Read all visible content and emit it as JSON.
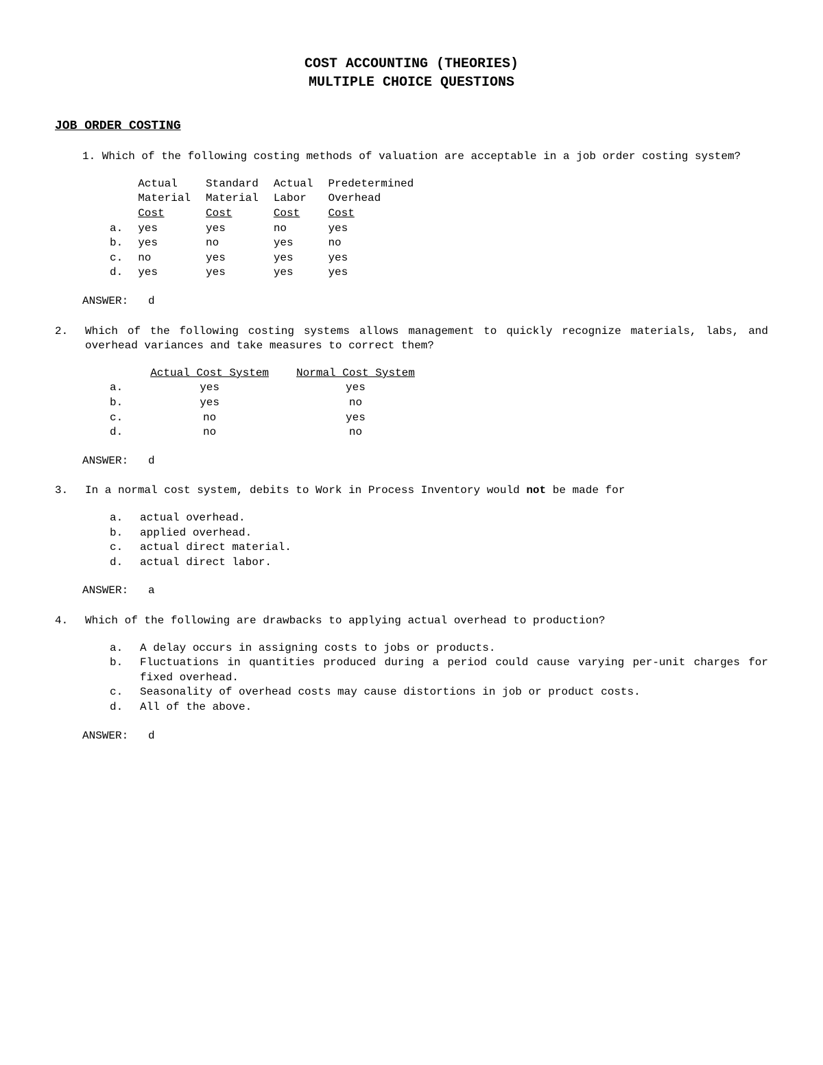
{
  "title_line1": "COST ACCOUNTING (THEORIES)",
  "title_line2": "MULTIPLE CHOICE QUESTIONS",
  "section_heading": "JOB ORDER COSTING",
  "q1": {
    "text": "1. Which of the following costing methods of valuation are acceptable in a job order  costing system?",
    "headers": {
      "c1a": "Actual",
      "c1b": "Material",
      "c1c": "Cost",
      "c2a": "Standard",
      "c2b": "Material",
      "c2c": "Cost",
      "c3a": "Actual",
      "c3b": "Labor",
      "c3c": "Cost",
      "c4a": "Predetermined",
      "c4b": "Overhead",
      "c4c": "Cost"
    },
    "rows": [
      {
        "l": "a.",
        "c1": "yes",
        "c2": "yes",
        "c3": "no",
        "c4": "yes"
      },
      {
        "l": "b.",
        "c1": "yes",
        "c2": "no",
        "c3": "yes",
        "c4": "no"
      },
      {
        "l": "c.",
        "c1": "no",
        "c2": "yes",
        "c3": "yes",
        "c4": "yes"
      },
      {
        "l": "d.",
        "c1": "yes",
        "c2": "yes",
        "c3": "yes",
        "c4": "yes"
      }
    ],
    "answer_label": "ANSWER:",
    "answer": "d"
  },
  "q2": {
    "num": "2.",
    "text": "Which of the following costing systems allows management to quickly recognize materials, labs, and overhead variances and take measures to correct them?",
    "headers": {
      "c1": "Actual Cost System",
      "c2": "Normal Cost System"
    },
    "rows": [
      {
        "l": "a.",
        "c1": "yes",
        "c2": "yes"
      },
      {
        "l": "b.",
        "c1": "yes",
        "c2": "no"
      },
      {
        "l": "c.",
        "c1": "no",
        "c2": "yes"
      },
      {
        "l": "d.",
        "c1": "no",
        "c2": "no"
      }
    ],
    "answer_label": "ANSWER:",
    "answer": "d"
  },
  "q3": {
    "num": "3.",
    "text_pre": "In a normal cost system, debits to Work in Process Inventory would ",
    "text_bold": "not",
    "text_post": " be made for",
    "options": [
      {
        "l": "a.",
        "t": "actual overhead."
      },
      {
        "l": "b.",
        "t": "applied overhead."
      },
      {
        "l": "c.",
        "t": "actual direct material."
      },
      {
        "l": "d.",
        "t": "actual direct labor."
      }
    ],
    "answer_label": "ANSWER:",
    "answer": "a"
  },
  "q4": {
    "num": "4.",
    "text": "Which of the following are drawbacks to applying actual overhead to production?",
    "options": [
      {
        "l": "a.",
        "t": "A delay occurs in assigning costs to jobs or products."
      },
      {
        "l": "b.",
        "t": "Fluctuations in quantities produced during a period could cause varying per-unit charges for fixed overhead."
      },
      {
        "l": "c.",
        "t": "Seasonality of overhead costs may cause distortions in job or product costs."
      },
      {
        "l": "d.",
        "t": "All of the above."
      }
    ],
    "answer_label": "ANSWER:",
    "answer": "d"
  }
}
